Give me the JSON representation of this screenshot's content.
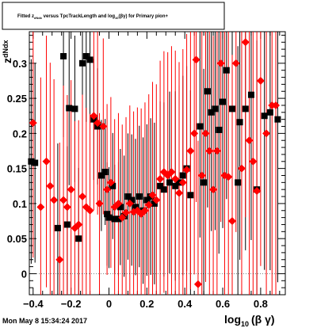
{
  "chart_data": {
    "type": "scatter",
    "title": {
      "part1": "Fitted  z",
      "part1_sub": "dNdx",
      "part2": "  versus TpcTrackLength and log",
      "part2_sub": "10",
      "part3": "(βγ) for Primary pion+"
    },
    "xlabel": {
      "main": "log",
      "sub": "10",
      "tail": "(β γ)"
    },
    "ylabel": {
      "main": "z",
      "sub": "dNdx"
    },
    "xlim": [
      -0.42,
      0.93
    ],
    "ylim": [
      -0.03,
      0.345
    ],
    "x_ticks": [
      -0.4,
      -0.2,
      0,
      0.2,
      0.4,
      0.6,
      0.8
    ],
    "x_tick_labels": [
      "−0.4",
      "−0.2",
      "0",
      "0.2",
      "0.4",
      "0.6",
      "0.8"
    ],
    "y_ticks": [
      0,
      0.05,
      0.1,
      0.15,
      0.2,
      0.25,
      0.3
    ],
    "y_tick_labels": [
      "0",
      "0.05",
      "0.1",
      "0.15",
      "0.2",
      "0.25",
      "0.3"
    ],
    "grid": false,
    "legend": "none",
    "series": [
      {
        "marker": "square",
        "color": "#000000",
        "points": [
          [
            -0.41,
            0.16
          ],
          [
            -0.39,
            0.158
          ],
          [
            -0.27,
            0.065
          ],
          [
            -0.22,
            0.07
          ],
          [
            -0.24,
            0.31
          ],
          [
            -0.21,
            0.236
          ],
          [
            -0.18,
            0.235
          ],
          [
            -0.16,
            0.05
          ],
          [
            -0.14,
            0.3
          ],
          [
            -0.12,
            0.31
          ],
          [
            -0.1,
            0.305
          ],
          [
            -0.08,
            0.22
          ],
          [
            -0.06,
            0.21
          ],
          [
            -0.04,
            0.14
          ],
          [
            -0.02,
            0.145
          ],
          [
            -0.01,
            0.085
          ],
          [
            0.0,
            0.08
          ],
          [
            0.02,
            0.125
          ],
          [
            0.03,
            0.078
          ],
          [
            0.05,
            0.078
          ],
          [
            0.06,
            0.095
          ],
          [
            0.08,
            0.082
          ],
          [
            0.1,
            0.11
          ],
          [
            0.12,
            0.105
          ],
          [
            0.14,
            0.095
          ],
          [
            0.16,
            0.11
          ],
          [
            0.18,
            0.09
          ],
          [
            0.2,
            0.105
          ],
          [
            0.22,
            0.11
          ],
          [
            0.24,
            0.1
          ],
          [
            0.27,
            0.125
          ],
          [
            0.29,
            0.12
          ],
          [
            0.32,
            0.13
          ],
          [
            0.35,
            0.125
          ],
          [
            0.37,
            0.13
          ],
          [
            0.39,
            0.14
          ],
          [
            0.41,
            0.15
          ],
          [
            0.43,
            0.112
          ],
          [
            0.48,
            0.21
          ],
          [
            0.5,
            0.13
          ],
          [
            0.52,
            0.26
          ],
          [
            0.54,
            0.23
          ],
          [
            0.56,
            0.235
          ],
          [
            0.58,
            0.205
          ],
          [
            0.6,
            0.245
          ],
          [
            0.62,
            0.29
          ],
          [
            0.65,
            0.235
          ],
          [
            0.68,
            0.13
          ],
          [
            0.69,
            0.216
          ],
          [
            0.72,
            0.235
          ],
          [
            0.75,
            0.255
          ],
          [
            0.78,
            0.12
          ],
          [
            0.82,
            0.225
          ],
          [
            0.85,
            0.23
          ],
          [
            0.89,
            0.22
          ]
        ]
      },
      {
        "marker": "diamond",
        "color": "#ff0000",
        "points": [
          [
            -0.4,
            0.215
          ],
          [
            -0.36,
            0.095
          ],
          [
            -0.33,
            0.16
          ],
          [
            -0.31,
            0.125
          ],
          [
            -0.29,
            0.105
          ],
          [
            -0.26,
            0.02
          ],
          [
            -0.24,
            0.105
          ],
          [
            -0.22,
            0.095
          ],
          [
            -0.2,
            0.12
          ],
          [
            -0.18,
            0.065
          ],
          [
            -0.16,
            0.07
          ],
          [
            -0.14,
            0.11
          ],
          [
            -0.12,
            0.095
          ],
          [
            -0.1,
            0.09
          ],
          [
            -0.08,
            0.225
          ],
          [
            -0.06,
            0.215
          ],
          [
            -0.05,
            0.1
          ],
          [
            -0.03,
            0.21
          ],
          [
            -0.01,
            0.12
          ],
          [
            0.01,
            0.13
          ],
          [
            0.03,
            0.095
          ],
          [
            0.05,
            0.1
          ],
          [
            0.07,
            0.08
          ],
          [
            0.09,
            0.087
          ],
          [
            0.11,
            0.1
          ],
          [
            0.13,
            0.088
          ],
          [
            0.15,
            0.09
          ],
          [
            0.17,
            0.085
          ],
          [
            0.19,
            0.09
          ],
          [
            0.21,
            0.098
          ],
          [
            0.23,
            0.112
          ],
          [
            0.25,
            0.105
          ],
          [
            0.27,
            0.135
          ],
          [
            0.29,
            0.145
          ],
          [
            0.31,
            0.14
          ],
          [
            0.33,
            0.145
          ],
          [
            0.35,
            0.135
          ],
          [
            0.37,
            0.115
          ],
          [
            0.39,
            0.13
          ],
          [
            0.41,
            0.148
          ],
          [
            0.43,
            0.175
          ],
          [
            0.45,
            0.2
          ],
          [
            0.46,
            0.305
          ],
          [
            0.47,
            -0.015
          ],
          [
            0.49,
            0.14
          ],
          [
            0.51,
            0.2
          ],
          [
            0.53,
            0.175
          ],
          [
            0.55,
            0.12
          ],
          [
            0.57,
            0.175
          ],
          [
            0.59,
            0.3
          ],
          [
            0.61,
            0.14
          ],
          [
            0.63,
            0.138
          ],
          [
            0.65,
            0.075
          ],
          [
            0.67,
            0.3
          ],
          [
            0.7,
            0.15
          ],
          [
            0.72,
            0.33
          ],
          [
            0.74,
            0.19
          ],
          [
            0.76,
            0.16
          ],
          [
            0.78,
            0.118
          ],
          [
            0.8,
            0.275
          ],
          [
            0.83,
            0.2
          ],
          [
            0.86,
            0.24
          ],
          [
            0.88,
            0.24
          ]
        ]
      }
    ]
  },
  "timestamp": "Mon May  8 15:34:24 2017"
}
